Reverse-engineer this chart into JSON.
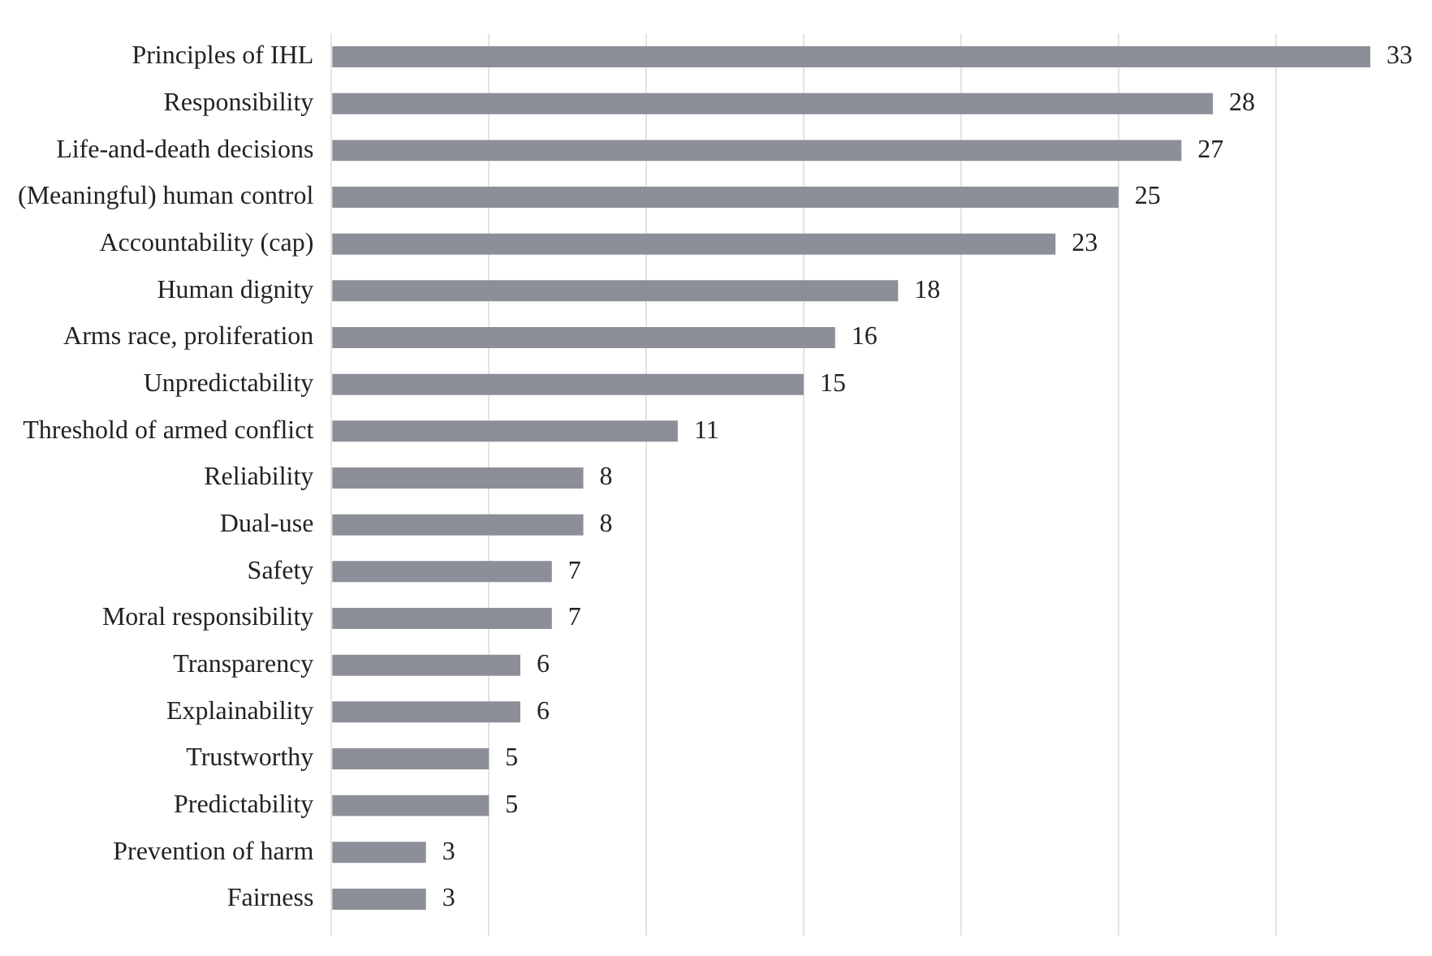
{
  "chart_data": {
    "type": "bar",
    "orientation": "horizontal",
    "categories": [
      "Principles of IHL",
      "Responsibility",
      "Life-and-death decisions",
      "(Meaningful) human control",
      "Accountability (cap)",
      "Human dignity",
      "Arms race, proliferation",
      "Unpredictability",
      "Threshold of armed conflict",
      "Reliability",
      "Dual-use",
      "Safety",
      "Moral responsibility",
      "Transparency",
      "Explainability",
      "Trustworthy",
      "Predictability",
      "Prevention of harm",
      "Fairness"
    ],
    "values": [
      33,
      28,
      27,
      25,
      23,
      18,
      16,
      15,
      11,
      8,
      8,
      7,
      7,
      6,
      6,
      5,
      5,
      3,
      3
    ],
    "color": "#8c8f97",
    "xlim": [
      0,
      33
    ],
    "xticks": [
      {
        "value": 0,
        "label": null
      },
      {
        "value": 5,
        "label": null
      },
      {
        "value": 10,
        "label": null
      },
      {
        "value": 15,
        "label": null
      },
      {
        "value": 20,
        "label": null
      },
      {
        "value": 25,
        "label": null
      },
      {
        "value": 30,
        "label": null
      }
    ],
    "tick_labels": "y",
    "grid": "x",
    "data_labels": true,
    "legend": false
  }
}
